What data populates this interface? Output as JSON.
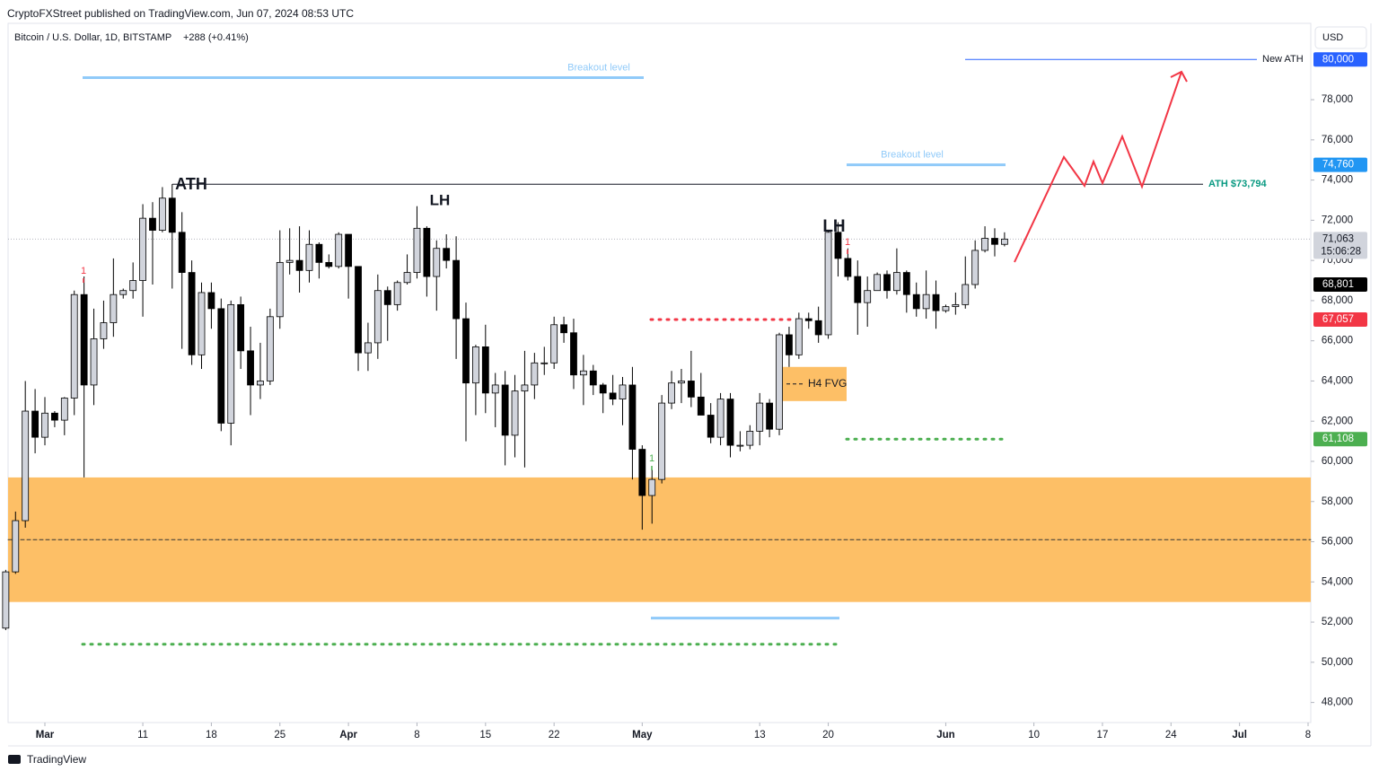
{
  "header": {
    "publisher": "CryptoFXStreet published on TradingView.com, Jun 07, 2024 08:53 UTC",
    "symbol": "Bitcoin / U.S. Dollar, 1D, BITSTAMP",
    "change": "+288 (+0.41%)",
    "currency": "USD",
    "brand": "TradingView"
  },
  "chart_data": {
    "type": "candlestick",
    "x": [
      "2024-02-26",
      "2024-02-27",
      "2024-02-28",
      "2024-02-29",
      "2024-03-01",
      "2024-03-02",
      "2024-03-03",
      "2024-03-04",
      "2024-03-05",
      "2024-03-06",
      "2024-03-07",
      "2024-03-08",
      "2024-03-09",
      "2024-03-10",
      "2024-03-11",
      "2024-03-12",
      "2024-03-13",
      "2024-03-14",
      "2024-03-15",
      "2024-03-16",
      "2024-03-17",
      "2024-03-18",
      "2024-03-19",
      "2024-03-20",
      "2024-03-21",
      "2024-03-22",
      "2024-03-23",
      "2024-03-24",
      "2024-03-25",
      "2024-03-26",
      "2024-03-27",
      "2024-03-28",
      "2024-03-29",
      "2024-03-30",
      "2024-03-31",
      "2024-04-01",
      "2024-04-02",
      "2024-04-03",
      "2024-04-04",
      "2024-04-05",
      "2024-04-06",
      "2024-04-07",
      "2024-04-08",
      "2024-04-09",
      "2024-04-10",
      "2024-04-11",
      "2024-04-12",
      "2024-04-13",
      "2024-04-14",
      "2024-04-15",
      "2024-04-16",
      "2024-04-17",
      "2024-04-18",
      "2024-04-19",
      "2024-04-20",
      "2024-04-21",
      "2024-04-22",
      "2024-04-23",
      "2024-04-24",
      "2024-04-25",
      "2024-04-26",
      "2024-04-27",
      "2024-04-28",
      "2024-04-29",
      "2024-04-30",
      "2024-05-01",
      "2024-05-02",
      "2024-05-03",
      "2024-05-04",
      "2024-05-05",
      "2024-05-06",
      "2024-05-07",
      "2024-05-08",
      "2024-05-09",
      "2024-05-10",
      "2024-05-11",
      "2024-05-12",
      "2024-05-13",
      "2024-05-14",
      "2024-05-15",
      "2024-05-16",
      "2024-05-17",
      "2024-05-18",
      "2024-05-19",
      "2024-05-20",
      "2024-05-21",
      "2024-05-22",
      "2024-05-23",
      "2024-05-24",
      "2024-05-25",
      "2024-05-26",
      "2024-05-27",
      "2024-05-28",
      "2024-05-29",
      "2024-05-30",
      "2024-05-31",
      "2024-06-01",
      "2024-06-02",
      "2024-06-03",
      "2024-06-04",
      "2024-06-05",
      "2024-06-06",
      "2024-06-07"
    ],
    "open": [
      51700,
      54500,
      57050,
      62500,
      61200,
      62400,
      62050,
      63150,
      68300,
      63800,
      66100,
      66900,
      68300,
      68500,
      69000,
      72100,
      71500,
      73100,
      71400,
      69400,
      65300,
      68400,
      67600,
      61900,
      67800,
      65500,
      63800,
      64000,
      67200,
      69900,
      70000,
      69500,
      70800,
      69900,
      69700,
      71300,
      69700,
      65400,
      65900,
      68500,
      67800,
      68900,
      69400,
      71600,
      69200,
      70600,
      70000,
      67100,
      63900,
      65700,
      63400,
      63800,
      61300,
      63500,
      63800,
      64900,
      64900,
      66800,
      66400,
      64300,
      64500,
      63800,
      63400,
      63100,
      63800,
      60600,
      58300,
      59100,
      62900,
      63900,
      64000,
      63200,
      62300,
      61200,
      63100,
      60800,
      60800,
      61500,
      62900,
      61600,
      66300,
      65300,
      67100,
      67000,
      66300,
      71400,
      70100,
      69200,
      67900,
      68500,
      69300,
      68500,
      69400,
      68300,
      67600,
      68300,
      67500,
      67700,
      67800,
      68800,
      70500,
      71100,
      70800
    ],
    "high": [
      54600,
      57500,
      64000,
      63600,
      63200,
      62500,
      63200,
      68500,
      69200,
      67600,
      68000,
      70100,
      68600,
      69900,
      72800,
      72900,
      73650,
      73800,
      72400,
      70000,
      68900,
      68900,
      68100,
      68000,
      68200,
      66700,
      65900,
      67600,
      71500,
      71600,
      71700,
      71500,
      70900,
      70300,
      71400,
      71300,
      69700,
      66900,
      69300,
      68700,
      69000,
      70300,
      72700,
      71700,
      71000,
      71300,
      71200,
      67900,
      65800,
      66800,
      64400,
      64500,
      64300,
      65500,
      65400,
      65700,
      67200,
      67200,
      67100,
      65300,
      64800,
      63900,
      64300,
      64200,
      64700,
      60800,
      59600,
      63300,
      64500,
      64600,
      65500,
      64400,
      62900,
      63400,
      63400,
      61500,
      61800,
      63400,
      63100,
      66400,
      66700,
      67400,
      67400,
      67700,
      71500,
      71900,
      70600,
      70000,
      69200,
      69400,
      69500,
      70600,
      69500,
      68900,
      69500,
      69000,
      67800,
      68400,
      70200,
      71000,
      71700,
      71600,
      71400
    ],
    "low": [
      51600,
      54400,
      56700,
      60400,
      60800,
      61700,
      61300,
      62300,
      59200,
      62800,
      65600,
      66200,
      68100,
      68100,
      67200,
      68800,
      71400,
      68600,
      65600,
      64800,
      64600,
      66600,
      61500,
      60800,
      64600,
      62300,
      63100,
      63800,
      66600,
      69300,
      68400,
      68900,
      69100,
      69600,
      69600,
      68100,
      64500,
      64500,
      65100,
      66000,
      67500,
      68800,
      69100,
      68200,
      67500,
      69600,
      65100,
      61000,
      62300,
      62400,
      61700,
      59800,
      60200,
      59700,
      63100,
      64300,
      64600,
      65900,
      63600,
      62800,
      63300,
      62400,
      62800,
      61800,
      59100,
      56600,
      56900,
      58900,
      62600,
      62900,
      62700,
      62300,
      60900,
      60800,
      60200,
      60500,
      60600,
      60800,
      61200,
      61300,
      64700,
      65100,
      66600,
      65900,
      66100,
      69200,
      69000,
      66300,
      66700,
      68500,
      68100,
      68300,
      67400,
      67200,
      67100,
      66600,
      67400,
      67300,
      67600,
      68600,
      70400,
      70200,
      70700
    ],
    "close": [
      54500,
      57050,
      62500,
      61200,
      62400,
      62050,
      63150,
      68300,
      63800,
      66100,
      66900,
      68300,
      68500,
      69000,
      72100,
      71500,
      73100,
      71400,
      69400,
      65300,
      68400,
      67600,
      61900,
      67800,
      65500,
      63800,
      64000,
      67200,
      69900,
      70000,
      69500,
      70800,
      69900,
      69700,
      71300,
      69700,
      65400,
      65900,
      68500,
      67800,
      68900,
      69400,
      71600,
      69200,
      70600,
      70000,
      67100,
      63900,
      65700,
      63400,
      63800,
      61300,
      63500,
      63800,
      64900,
      64900,
      66800,
      66400,
      64300,
      64500,
      63800,
      63400,
      63100,
      63800,
      60600,
      58300,
      59100,
      62900,
      63900,
      64000,
      63200,
      62300,
      61200,
      63100,
      60800,
      60800,
      61500,
      62900,
      61600,
      66300,
      65300,
      67100,
      67000,
      66300,
      71400,
      70100,
      69200,
      67900,
      68500,
      69300,
      68500,
      69400,
      68300,
      67600,
      68300,
      67500,
      67700,
      67800,
      68800,
      70500,
      71100,
      70800,
      71063
    ],
    "up_color": "#d1d4dc",
    "down_color": "#000000",
    "ylim": [
      47000,
      81800
    ],
    "yticks": [
      {
        "value": 48000,
        "label": "48,000"
      },
      {
        "value": 50000,
        "label": "50,000"
      },
      {
        "value": 52000,
        "label": "52,000"
      },
      {
        "value": 54000,
        "label": "54,000"
      },
      {
        "value": 56000,
        "label": "56,000"
      },
      {
        "value": 58000,
        "label": "58,000"
      },
      {
        "value": 60000,
        "label": "60,000"
      },
      {
        "value": 62000,
        "label": "62,000"
      },
      {
        "value": 64000,
        "label": "64,000"
      },
      {
        "value": 66000,
        "label": "66,000"
      },
      {
        "value": 68000,
        "label": "68,000"
      },
      {
        "value": 70000,
        "label": "70,000"
      },
      {
        "value": 72000,
        "label": "72,000"
      },
      {
        "value": 74000,
        "label": "74,000"
      },
      {
        "value": 76000,
        "label": "76,000"
      },
      {
        "value": 78000,
        "label": "78,000"
      }
    ],
    "xticks": [
      {
        "value": "2024-03-01",
        "label": "Mar"
      },
      {
        "value": "2024-03-11",
        "label": "11"
      },
      {
        "value": "2024-03-18",
        "label": "18"
      },
      {
        "value": "2024-03-25",
        "label": "25"
      },
      {
        "value": "2024-04-01",
        "label": "Apr"
      },
      {
        "value": "2024-04-08",
        "label": "8"
      },
      {
        "value": "2024-04-15",
        "label": "15"
      },
      {
        "value": "2024-04-22",
        "label": "22"
      },
      {
        "value": "2024-05-01",
        "label": "May"
      },
      {
        "value": "2024-05-13",
        "label": "13"
      },
      {
        "value": "2024-05-20",
        "label": "20"
      },
      {
        "value": "2024-06-01",
        "label": "Jun"
      },
      {
        "value": "2024-06-10",
        "label": "10"
      },
      {
        "value": "2024-06-17",
        "label": "17"
      },
      {
        "value": "2024-06-24",
        "label": "24"
      },
      {
        "value": "2024-07-01",
        "label": "Jul"
      },
      {
        "value": "2024-07-08",
        "label": "8"
      }
    ],
    "zones": [
      {
        "low": 53000,
        "high": 59200,
        "color": "#fdbf66"
      },
      {
        "label": "H4 FVG",
        "low": 63000,
        "high": 64700,
        "color": "#fdbf66"
      }
    ],
    "levels": [
      {
        "label": "New ATH",
        "value": 80000,
        "color": "#2962ff"
      },
      {
        "label": "ATH $73,794",
        "value": 73794,
        "color": "#089981"
      },
      {
        "label": "Breakout level",
        "value": 79100,
        "color": "#90caf9"
      },
      {
        "label": "Breakout level",
        "value": 74760,
        "color": "#90caf9"
      },
      {
        "value": 52200,
        "color": "#90caf9"
      },
      {
        "value": 67057,
        "color": "#f23645"
      },
      {
        "value": 61108,
        "color": "#4caf50"
      },
      {
        "value": 50900,
        "color": "#4caf50"
      },
      {
        "value": 56100,
        "color": "#333333"
      }
    ],
    "annotations": [
      "ATH",
      "LH",
      "LH"
    ],
    "signals": [
      {
        "text": "1",
        "color": "#f23645"
      },
      {
        "text": "1",
        "color": "#f23645"
      },
      {
        "text": "1",
        "color": "#4caf50"
      }
    ],
    "badges": [
      {
        "value": 80000,
        "label": "80,000",
        "color": "#2962ff"
      },
      {
        "value": 74760,
        "label": "74,760",
        "color": "#2196f3"
      },
      {
        "value": 71063,
        "label": "71,063",
        "sub": "15:06:28",
        "color": "#d1d4dc"
      },
      {
        "value": 68801,
        "label": "68,801",
        "color": "#000000"
      },
      {
        "value": 67057,
        "label": "67,057",
        "color": "#f23645"
      },
      {
        "value": 61108,
        "label": "61,108",
        "color": "#4caf50"
      }
    ]
  }
}
